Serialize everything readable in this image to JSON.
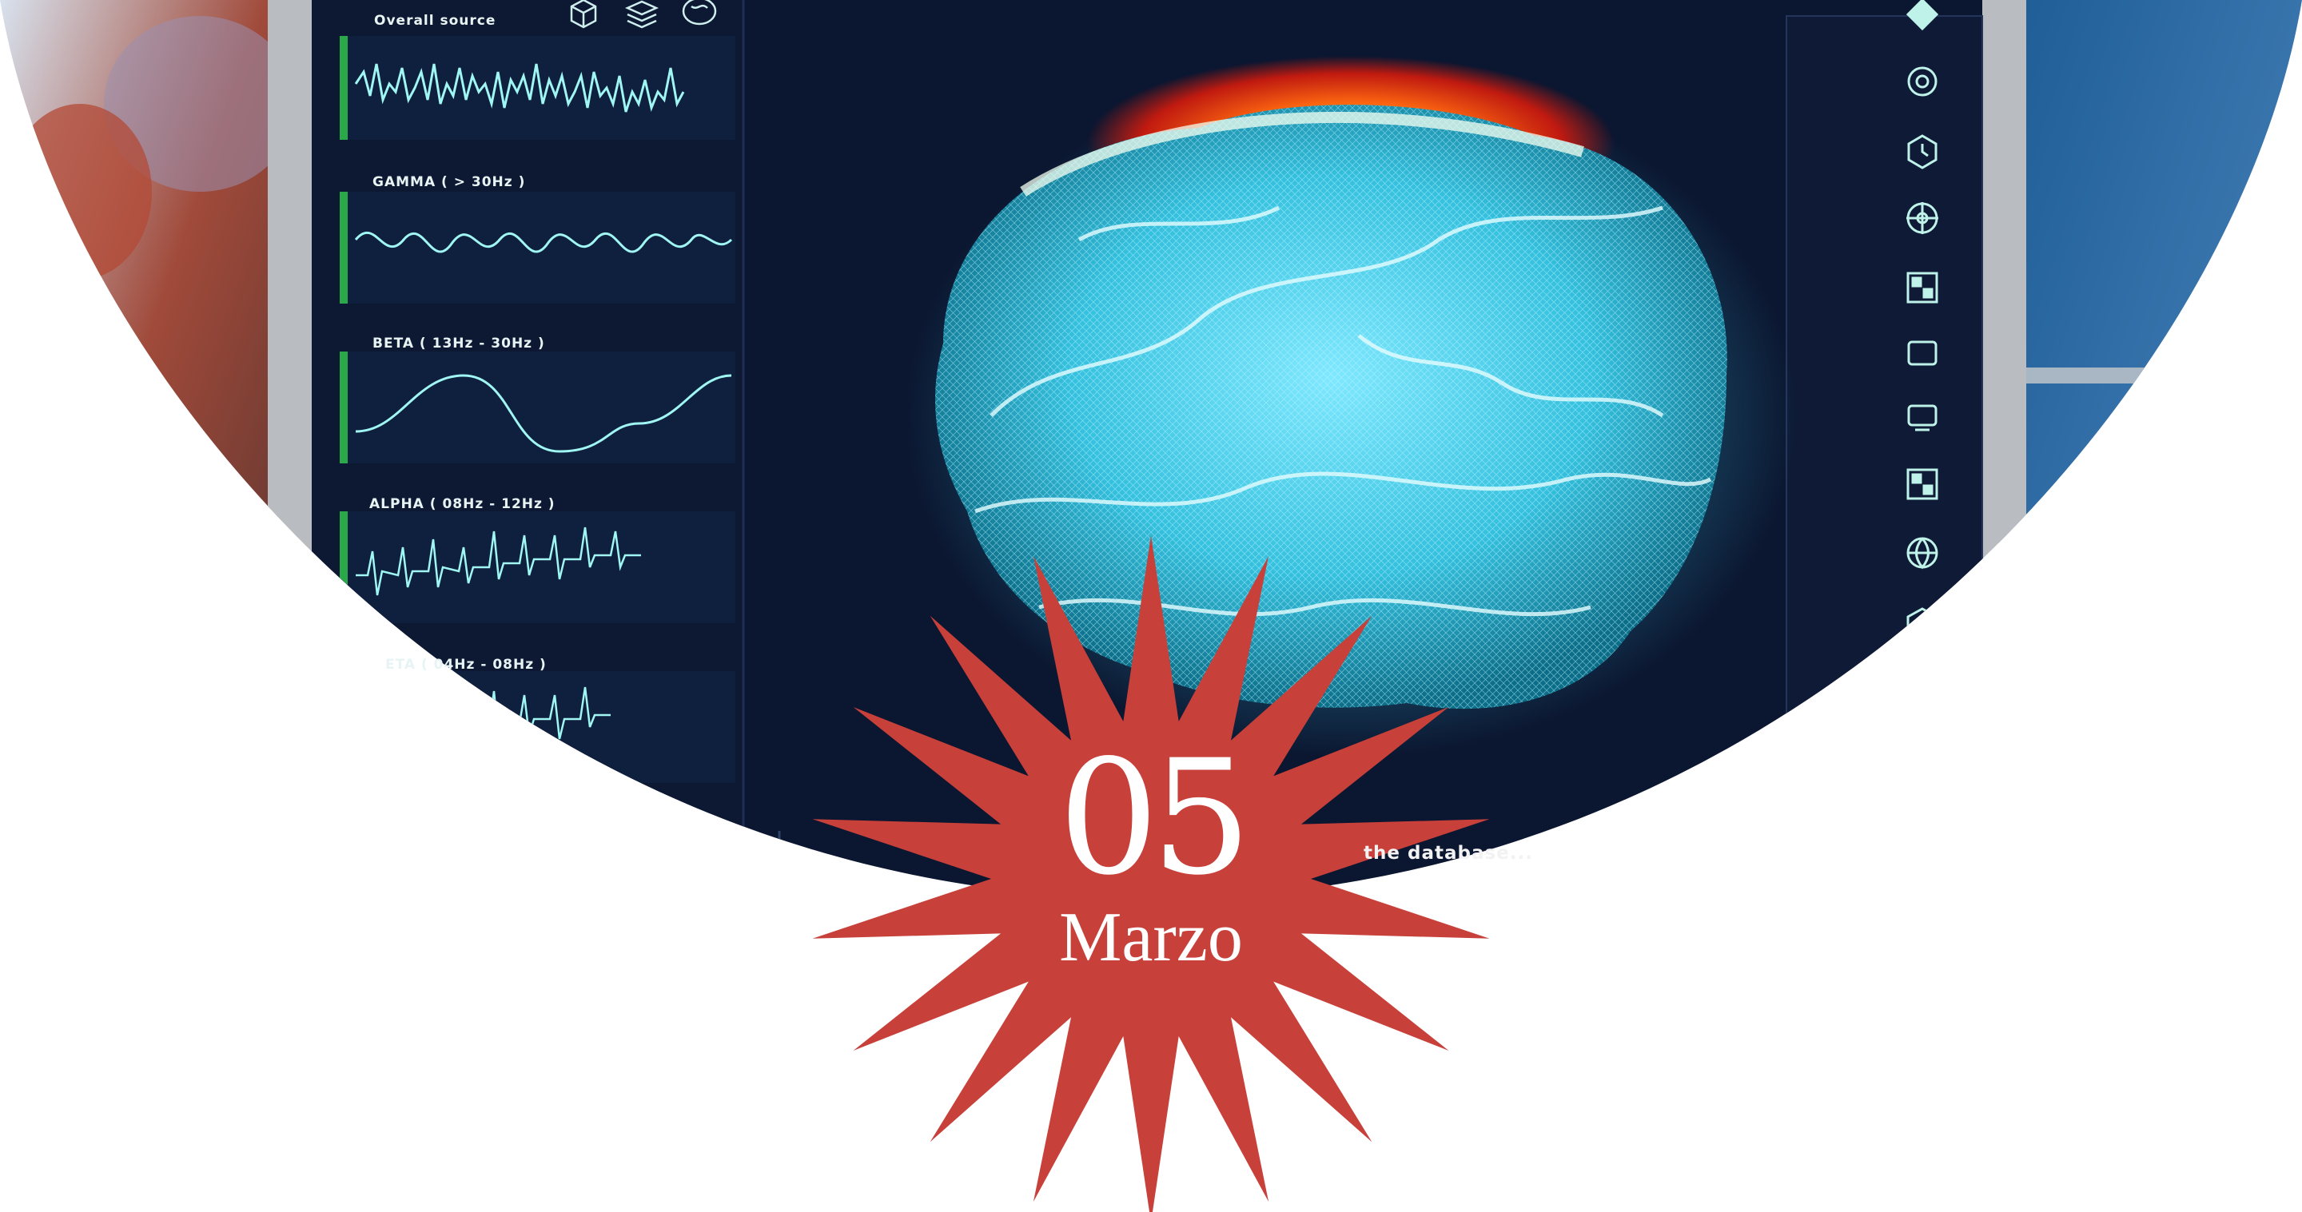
{
  "monitor": {
    "panel_title": "Overall source",
    "waves": [
      {
        "label": "GAMMA ( > 30Hz )"
      },
      {
        "label": "BETA ( 13Hz - 30Hz )"
      },
      {
        "label": "ALPHA ( 08Hz - 12Hz )"
      },
      {
        "label": "ETA ( 04Hz - 08Hz )"
      }
    ],
    "status_text": "the database...",
    "toolbar_icons": [
      "cube-icon",
      "layers-icon",
      "brain-outline-icon"
    ],
    "sidebar_icons": [
      "diamond-icon",
      "gear-hex-icon",
      "clock-hex-icon",
      "target-icon",
      "qr-icon",
      "square-icon",
      "monitor-icon",
      "qr-icon",
      "globe-icon",
      "triangle-icon"
    ]
  },
  "date_badge": {
    "day": "05",
    "month": "Marzo",
    "color": "#c8403a"
  }
}
